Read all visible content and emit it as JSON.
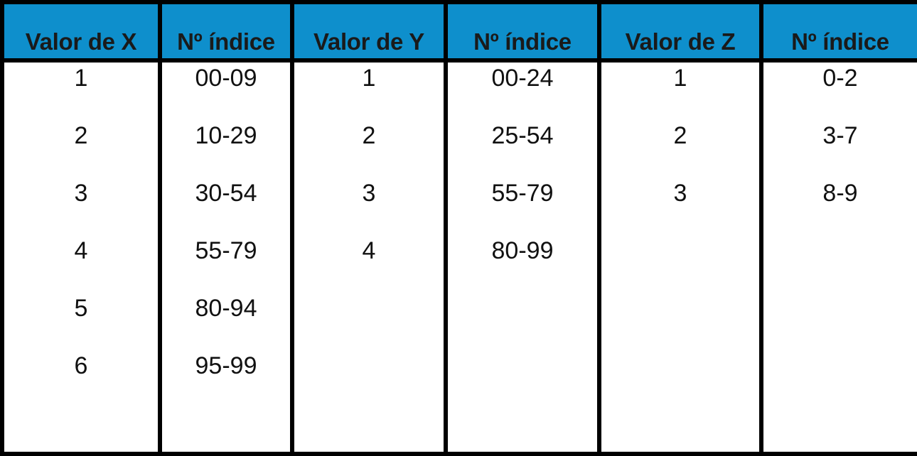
{
  "colors": {
    "header_background": "#0e8fcc",
    "grid": "#000000",
    "cell_background": "#ffffff",
    "text": "#111111"
  },
  "table": {
    "headers": [
      "Valor de X",
      "Nº índice",
      "Valor de Y",
      "Nº índice",
      "Valor de Z",
      "Nº índice"
    ],
    "rows": [
      [
        "1",
        "00-09",
        "1",
        "00-24",
        "1",
        "0-2"
      ],
      [
        "2",
        "10-29",
        "2",
        "25-54",
        "2",
        "3-7"
      ],
      [
        "3",
        "30-54",
        "3",
        "55-79",
        "3",
        "8-9"
      ],
      [
        "4",
        "55-79",
        "4",
        "80-99",
        "",
        ""
      ],
      [
        "5",
        "80-94",
        "",
        "",
        "",
        ""
      ],
      [
        "6",
        "95-99",
        "",
        "",
        "",
        ""
      ],
      [
        "",
        "",
        "",
        "",
        "",
        ""
      ]
    ]
  }
}
